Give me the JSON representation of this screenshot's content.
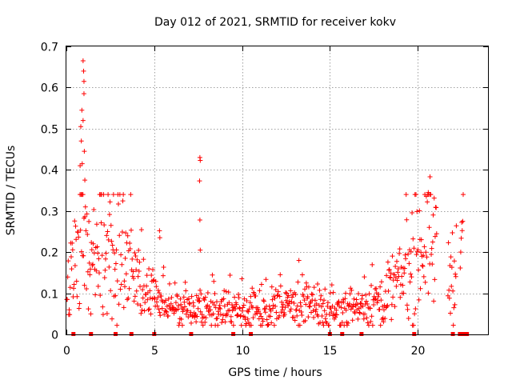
{
  "chart_data": {
    "type": "scatter",
    "title": "Day 012 of 2021, SRMTID for receiver kokv",
    "xlabel": "GPS time / hours",
    "ylabel": "SRMTID / TECUs",
    "xlim": [
      0,
      24
    ],
    "ylim": [
      0,
      0.7
    ],
    "grid": true,
    "marker": "+",
    "series_color": "#ff0000",
    "x_ticks": [
      {
        "value": 0,
        "label": "0"
      },
      {
        "value": 5,
        "label": "5"
      },
      {
        "value": 10,
        "label": "10"
      },
      {
        "value": 15,
        "label": "15"
      },
      {
        "value": 20,
        "label": "20"
      }
    ],
    "y_ticks": [
      {
        "value": 0,
        "label": "0"
      },
      {
        "value": 0.1,
        "label": "0.1"
      },
      {
        "value": 0.2,
        "label": "0.2"
      },
      {
        "value": 0.3,
        "label": "0.3"
      },
      {
        "value": 0.4,
        "label": "0.4"
      },
      {
        "value": 0.5,
        "label": "0.5"
      },
      {
        "value": 0.6,
        "label": "0.6"
      },
      {
        "value": 0.7,
        "label": "0.7"
      }
    ],
    "series": [
      {
        "name": "SRMTID",
        "profile": [
          {
            "x": 0.0,
            "y": 0.1
          },
          {
            "x": 0.4,
            "y": 0.19
          },
          {
            "x": 0.9,
            "y": 0.24
          },
          {
            "x": 1.5,
            "y": 0.17
          },
          {
            "x": 2.2,
            "y": 0.2
          },
          {
            "x": 3.0,
            "y": 0.22
          },
          {
            "x": 3.6,
            "y": 0.17
          },
          {
            "x": 4.2,
            "y": 0.11
          },
          {
            "x": 5.0,
            "y": 0.08
          },
          {
            "x": 6.0,
            "y": 0.07
          },
          {
            "x": 7.0,
            "y": 0.07
          },
          {
            "x": 8.0,
            "y": 0.06
          },
          {
            "x": 9.0,
            "y": 0.06
          },
          {
            "x": 10.0,
            "y": 0.06
          },
          {
            "x": 11.0,
            "y": 0.05
          },
          {
            "x": 12.0,
            "y": 0.06
          },
          {
            "x": 13.0,
            "y": 0.08
          },
          {
            "x": 14.0,
            "y": 0.07
          },
          {
            "x": 15.0,
            "y": 0.06
          },
          {
            "x": 16.0,
            "y": 0.06
          },
          {
            "x": 17.0,
            "y": 0.07
          },
          {
            "x": 18.0,
            "y": 0.09
          },
          {
            "x": 19.0,
            "y": 0.13
          },
          {
            "x": 19.8,
            "y": 0.17
          },
          {
            "x": 20.5,
            "y": 0.26
          },
          {
            "x": 21.0,
            "y": 0.21
          },
          {
            "x": 21.5,
            "y": 0.17
          },
          {
            "x": 22.0,
            "y": 0.15
          },
          {
            "x": 22.6,
            "y": 0.2
          }
        ],
        "gaps": [
          [
            21.1,
            21.7
          ],
          [
            22.2,
            22.4
          ]
        ],
        "outliers": [
          {
            "x": 0.95,
            "y": 0.665
          },
          {
            "x": 0.98,
            "y": 0.64
          },
          {
            "x": 1.0,
            "y": 0.615
          },
          {
            "x": 1.0,
            "y": 0.585
          },
          {
            "x": 0.88,
            "y": 0.545
          },
          {
            "x": 0.95,
            "y": 0.52
          },
          {
            "x": 0.82,
            "y": 0.505
          },
          {
            "x": 0.85,
            "y": 0.47
          },
          {
            "x": 1.02,
            "y": 0.445
          },
          {
            "x": 0.78,
            "y": 0.41
          },
          {
            "x": 0.9,
            "y": 0.415
          },
          {
            "x": 1.05,
            "y": 0.375
          },
          {
            "x": 7.6,
            "y": 0.43
          },
          {
            "x": 7.62,
            "y": 0.423
          },
          {
            "x": 7.58,
            "y": 0.373
          },
          {
            "x": 7.6,
            "y": 0.278
          },
          {
            "x": 7.62,
            "y": 0.205
          },
          {
            "x": 20.7,
            "y": 0.383
          },
          {
            "x": 20.6,
            "y": 0.345
          },
          {
            "x": 5.3,
            "y": 0.252
          },
          {
            "x": 5.32,
            "y": 0.235
          }
        ],
        "zero_markers": [
          0.4,
          1.4,
          2.8,
          3.7,
          5.0,
          7.1,
          9.5,
          10.5,
          15.0,
          15.7,
          16.8,
          19.8,
          22.0,
          22.4,
          22.6,
          22.8
        ]
      }
    ]
  }
}
